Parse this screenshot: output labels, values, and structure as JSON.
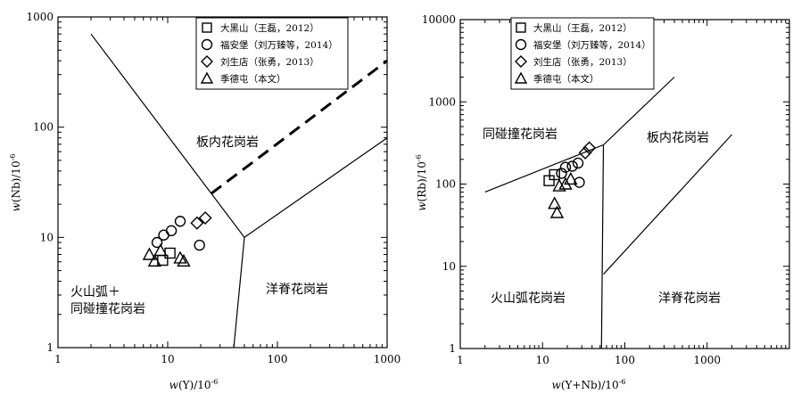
{
  "chart_data": [
    {
      "type": "scatter",
      "xscale": "log",
      "yscale": "log",
      "xlim": [
        1,
        1000
      ],
      "ylim": [
        1,
        1000
      ],
      "xticks": [
        "1",
        "10",
        "100",
        "1000"
      ],
      "yticks": [
        "1",
        "10",
        "100",
        "1000"
      ],
      "xlabel": "w(Y)/10⁻⁶",
      "ylabel": "w(Nb)/10⁻⁶",
      "legend_position": "top-center",
      "regions": {
        "wpg": "板内花岗岩",
        "org": "洋脊花岗岩",
        "vag_syn_1": "火山弧＋",
        "vag_syn_2": "同碰撞花岗岩"
      },
      "boundaries": [
        {
          "style": "solid",
          "points": [
            [
              2,
              700
            ],
            [
              50,
              10
            ],
            [
              1000,
              80
            ]
          ]
        },
        {
          "style": "solid",
          "points": [
            [
              50,
              10
            ],
            [
              40,
              1
            ]
          ]
        },
        {
          "style": "dashed",
          "points": [
            [
              25,
              25
            ],
            [
              1000,
              400
            ]
          ]
        }
      ],
      "series": [
        {
          "name": "大黑山（王磊，2012）",
          "marker": "square",
          "points": [
            [
              9,
              6.2
            ],
            [
              10.5,
              7.2
            ]
          ]
        },
        {
          "name": "福安堡（刘万臻等，2014）",
          "marker": "circle",
          "points": [
            [
              8,
              9
            ],
            [
              9.2,
              10.5
            ],
            [
              10.8,
              11.5
            ],
            [
              13,
              14
            ],
            [
              19.5,
              8.5
            ]
          ]
        },
        {
          "name": "刘生店（张勇，2013）",
          "marker": "diamond",
          "points": [
            [
              18.5,
              13.5
            ],
            [
              22,
              15
            ]
          ]
        },
        {
          "name": "季德屯（本文）",
          "marker": "triangle",
          "points": [
            [
              6.8,
              7
            ],
            [
              7.6,
              6.1
            ],
            [
              8.6,
              7.6
            ],
            [
              13,
              6.5
            ],
            [
              14,
              6.1
            ]
          ]
        }
      ]
    },
    {
      "type": "scatter",
      "xscale": "log",
      "yscale": "log",
      "xlim": [
        1,
        10000
      ],
      "ylim": [
        1,
        10000
      ],
      "xticks": [
        "1",
        "10",
        "100",
        "1000"
      ],
      "yticks": [
        "1",
        "10",
        "100",
        "1000",
        "10000"
      ],
      "xlabel": "w(Y+Nb)/10⁻⁶",
      "ylabel": "w(Rb)/10⁻⁶",
      "legend_position": "top-center",
      "regions": {
        "syn": "同碰撞花岗岩",
        "wpg": "板内花岗岩",
        "vag": "火山弧花岗岩",
        "org": "洋脊花岗岩"
      },
      "boundaries": [
        {
          "style": "solid",
          "points": [
            [
              2,
              80
            ],
            [
              55,
              300
            ],
            [
              400,
              2000
            ]
          ]
        },
        {
          "style": "solid",
          "points": [
            [
              55,
              300
            ],
            [
              52,
              1
            ]
          ]
        },
        {
          "style": "solid",
          "points": [
            [
              55,
              8
            ],
            [
              2000,
              400
            ]
          ]
        }
      ],
      "series": [
        {
          "name": "大黑山（王磊，2012）",
          "marker": "square",
          "points": [
            [
              12,
              110
            ],
            [
              14,
              130
            ]
          ]
        },
        {
          "name": "福安堡（刘万臻等，2014）",
          "marker": "circle",
          "points": [
            [
              17,
              135
            ],
            [
              19,
              160
            ],
            [
              23,
              165
            ],
            [
              27,
              180
            ],
            [
              28,
              105
            ]
          ]
        },
        {
          "name": "刘生店（张勇，2013）",
          "marker": "diamond",
          "points": [
            [
              33,
              240
            ],
            [
              37,
              275
            ]
          ]
        },
        {
          "name": "季德屯（本文）",
          "marker": "triangle",
          "points": [
            [
              14,
              58
            ],
            [
              15,
              45
            ],
            [
              16,
              95
            ],
            [
              19,
              100
            ],
            [
              22,
              115
            ]
          ]
        }
      ]
    }
  ],
  "labels": {
    "left_x_var": "w",
    "left_x_rest": "(Y)/10",
    "left_y_var": "w",
    "left_y_rest": "(Nb)/10",
    "right_x_var": "w",
    "right_x_rest": "(Y+Nb)/10",
    "right_y_var": "w",
    "right_y_rest": "(Rb)/10",
    "exponent": "-6"
  }
}
